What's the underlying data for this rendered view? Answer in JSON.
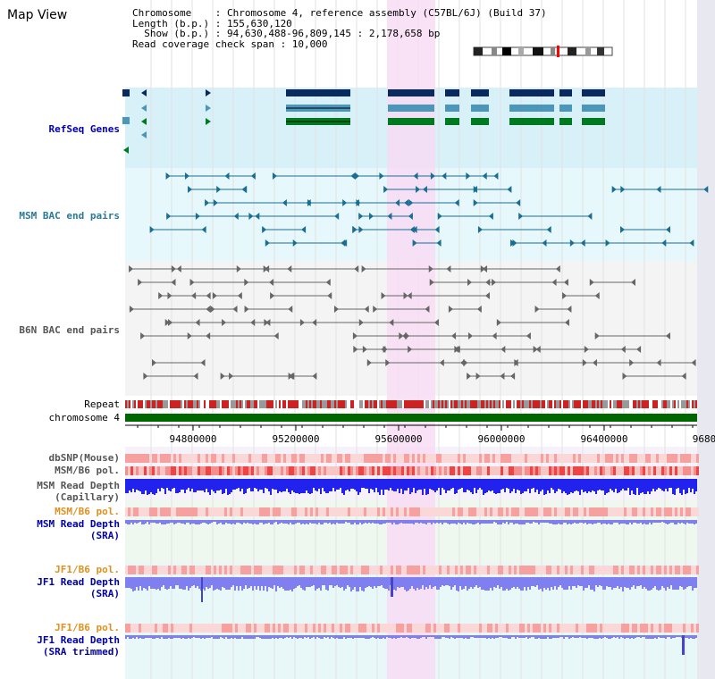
{
  "view": {
    "title": "Map View"
  },
  "info": {
    "line1": "Chromosome    : Chromosome 4, reference assembly (C57BL/6J) (Build 37)",
    "line2": "Length (b.p.) : 155,630,120",
    "line3": "  Show (b.p.) : 94,630,488-96,809,145 : 2,178,658 bp",
    "line4": "Read coverage check span : 10,000"
  },
  "labels": {
    "refseq": "RefSeq Genes",
    "msm_bac": "MSM BAC end pairs",
    "b6n_bac": "B6N BAC end pairs",
    "repeat": "Repeat",
    "chromosome": "chromosome 4",
    "dbsnp": "dbSNP(Mouse)",
    "msm_b6_pol_1": "MSM/B6 pol.",
    "msm_depth_cap_1": "MSM Read Depth",
    "msm_depth_cap_2": "(Capillary)",
    "msm_b6_pol_2": "MSM/B6 pol.",
    "msm_depth_sra_1": "MSM Read Depth",
    "msm_depth_sra_2": "(SRA)",
    "jf1_b6_pol_1": "JF1/B6 pol.",
    "jf1_depth_sra_1": "JF1 Read Depth",
    "jf1_depth_sra_2": "(SRA)",
    "jf1_b6_pol_2": "JF1/B6 pol.",
    "jf1_depth_trim_1": "JF1 Read Depth",
    "jf1_depth_trim_2": "(SRA trimmed)"
  },
  "axis": {
    "ticks": [
      "94800000",
      "95200000",
      "95600000",
      "96000000",
      "96400000",
      "9680"
    ]
  },
  "colors": {
    "refseq_bg": "#d8f0f8",
    "msm_bg": "#e6f8fb",
    "b6n_bg": "#f4f4f4",
    "highlight": "#f8dcf4",
    "gene_dark": "#0a2a5e",
    "gene_mid": "#4a97bb",
    "gene_green": "#007a20",
    "chromosome_bar": "#006600",
    "depth_blue": "#2222ee",
    "depth_light": "#7f7ff0"
  }
}
